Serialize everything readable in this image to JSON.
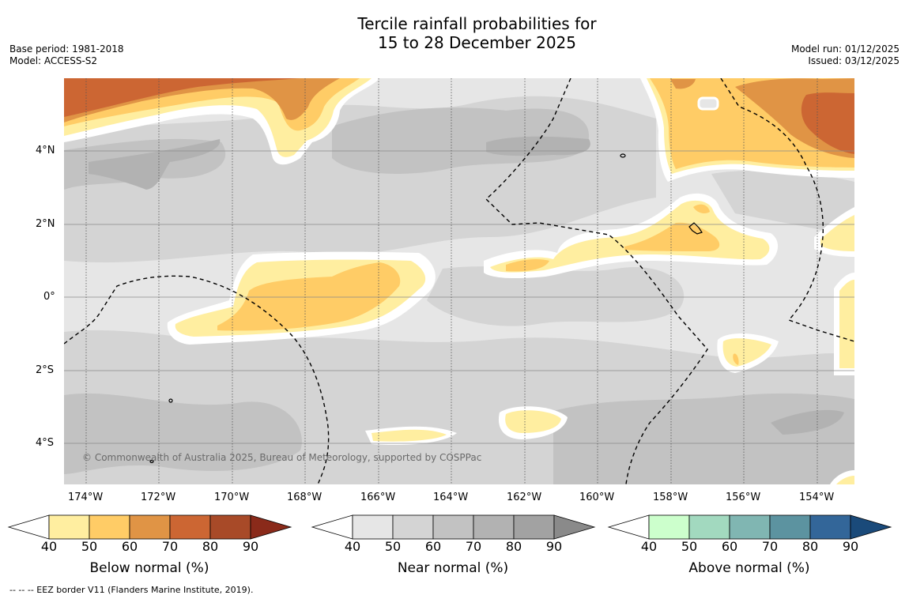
{
  "title_line1": "Tercile rainfall probabilities for",
  "title_line2": "15 to 28 December 2025",
  "base_period": "Base period: 1981-2018",
  "model": "Model: ACCESS-S2",
  "model_run": "Model run: 01/12/2025",
  "issued": "Issued: 03/12/2025",
  "copyright": "© Commonwealth of Australia 2025, Bureau of Meteorology, supported by COSPPac",
  "footnote": "--  --  -- EEZ border V11 (Flanders Marine Institute, 2019).",
  "lat_labels": [
    "4°N",
    "2°N",
    "0°",
    "2°S",
    "4°S"
  ],
  "lon_labels": [
    "174°W",
    "172°W",
    "170°W",
    "168°W",
    "166°W",
    "164°W",
    "162°W",
    "160°W",
    "158°W",
    "156°W",
    "154°W"
  ],
  "colorbars": [
    {
      "title": "Below normal (%)",
      "ticks": [
        "40",
        "50",
        "60",
        "70",
        "80",
        "90"
      ],
      "colors": [
        "#ffffff",
        "#ffeea0",
        "#ffcc66",
        "#e09445",
        "#cc6633",
        "#a84a28",
        "#8a2a1a"
      ]
    },
    {
      "title": "Near normal (%)",
      "ticks": [
        "40",
        "50",
        "60",
        "70",
        "80",
        "90"
      ],
      "colors": [
        "#ffffff",
        "#e6e6e6",
        "#d4d4d4",
        "#c2c2c2",
        "#b2b2b2",
        "#a2a2a2",
        "#8a8a8a"
      ]
    },
    {
      "title": "Above normal (%)",
      "ticks": [
        "40",
        "50",
        "60",
        "70",
        "80",
        "90"
      ],
      "colors": [
        "#ffffff",
        "#ccffcc",
        "#a2d9bf",
        "#80b6b2",
        "#5c93a0",
        "#336699",
        "#1a4a7a"
      ]
    }
  ]
}
